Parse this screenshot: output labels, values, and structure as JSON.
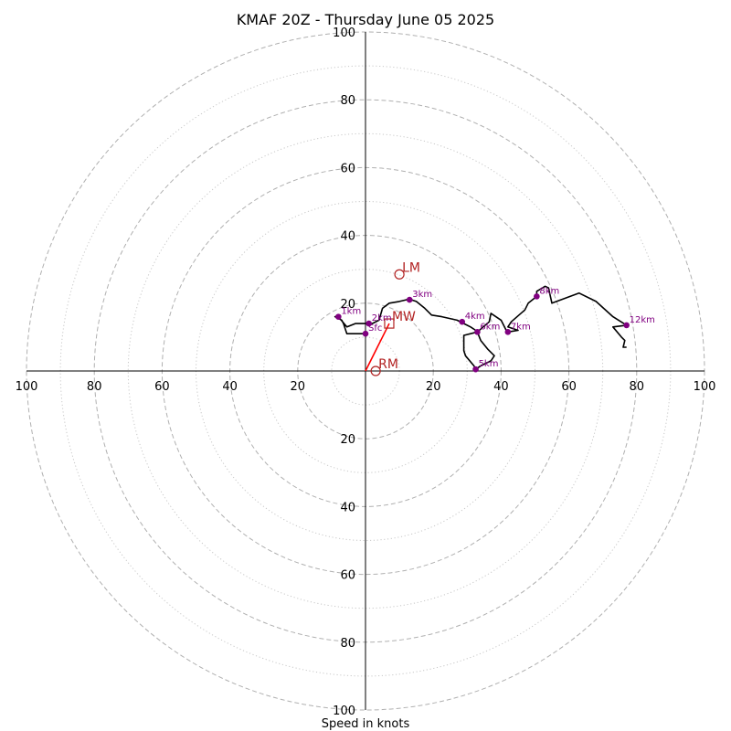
{
  "chart_data": {
    "type": "hodograph",
    "title": "KMAF 20Z - Thursday June 05 2025",
    "xlabel": "Speed in knots",
    "max_speed": 100,
    "ring_major": [
      20,
      40,
      60,
      80,
      100
    ],
    "ring_minor": [
      10,
      30,
      50,
      70,
      90
    ],
    "tick_labels": [
      "20",
      "40",
      "60",
      "80",
      "100"
    ],
    "colors": {
      "trace": "#000000",
      "height_points": "#800080",
      "motion": "#b22222",
      "shear": "#ff0000",
      "grid": "#b0b0b0"
    },
    "trace": [
      [
        0,
        11
      ],
      [
        -5.5,
        11
      ],
      [
        -6.5,
        14
      ],
      [
        -7,
        15
      ],
      [
        -9,
        16
      ],
      [
        -8,
        16
      ],
      [
        -5.5,
        13
      ],
      [
        -3,
        14
      ],
      [
        0.5,
        14
      ],
      [
        2,
        14
      ],
      [
        4,
        15
      ],
      [
        5,
        18.5
      ],
      [
        7,
        20
      ],
      [
        10,
        20.5
      ],
      [
        12,
        21
      ],
      [
        13.5,
        21
      ],
      [
        15,
        20.5
      ],
      [
        17.5,
        18.5
      ],
      [
        19.5,
        16.5
      ],
      [
        22.5,
        16
      ],
      [
        27,
        15
      ],
      [
        29,
        14
      ],
      [
        31,
        13
      ],
      [
        32.5,
        12
      ],
      [
        33,
        11.5
      ],
      [
        29,
        10.5
      ],
      [
        29,
        6
      ],
      [
        29.5,
        4.5
      ],
      [
        32,
        1.5
      ],
      [
        32.5,
        0.5
      ],
      [
        34,
        1.5
      ],
      [
        37,
        3
      ],
      [
        38,
        4.5
      ],
      [
        36,
        6.5
      ],
      [
        34,
        9
      ],
      [
        33,
        11.5
      ],
      [
        36.5,
        14.5
      ],
      [
        37,
        17
      ],
      [
        40,
        15
      ],
      [
        41.5,
        12
      ],
      [
        42,
        11.5
      ],
      [
        45,
        12
      ],
      [
        42,
        13
      ],
      [
        43,
        14.5
      ],
      [
        47,
        18
      ],
      [
        48,
        20
      ],
      [
        50.5,
        22
      ],
      [
        50.5,
        23.5
      ],
      [
        53,
        25
      ],
      [
        54,
        24.5
      ],
      [
        55,
        20
      ],
      [
        63,
        23
      ],
      [
        68,
        20.5
      ],
      [
        73,
        16
      ],
      [
        77,
        13.5
      ],
      [
        73,
        13
      ],
      [
        75.5,
        10
      ],
      [
        76.5,
        9
      ],
      [
        76,
        7
      ],
      [
        77,
        7
      ]
    ],
    "heights": [
      {
        "label": "Sfc",
        "u": 0,
        "v": 11
      },
      {
        "label": "1km",
        "u": -8,
        "v": 16
      },
      {
        "label": "2km",
        "u": 1,
        "v": 14
      },
      {
        "label": "3km",
        "u": 13,
        "v": 21
      },
      {
        "label": "4km",
        "u": 28.5,
        "v": 14.5
      },
      {
        "label": "5km",
        "u": 32.5,
        "v": 0.5
      },
      {
        "label": "6km",
        "u": 33,
        "v": 11.5
      },
      {
        "label": "7km",
        "u": 42,
        "v": 11.5
      },
      {
        "label": "8km",
        "u": 50.5,
        "v": 22
      },
      {
        "label": "12km",
        "u": 77,
        "v": 13.5
      }
    ],
    "motions": [
      {
        "label": "LM",
        "u": 10,
        "v": 28.5,
        "marker": "circle"
      },
      {
        "label": "MW",
        "u": 7,
        "v": 14,
        "marker": "square"
      },
      {
        "label": "RM",
        "u": 3,
        "v": 0,
        "marker": "circle"
      }
    ],
    "shear_vector": {
      "from": [
        0,
        0
      ],
      "to": [
        7,
        14
      ]
    }
  }
}
